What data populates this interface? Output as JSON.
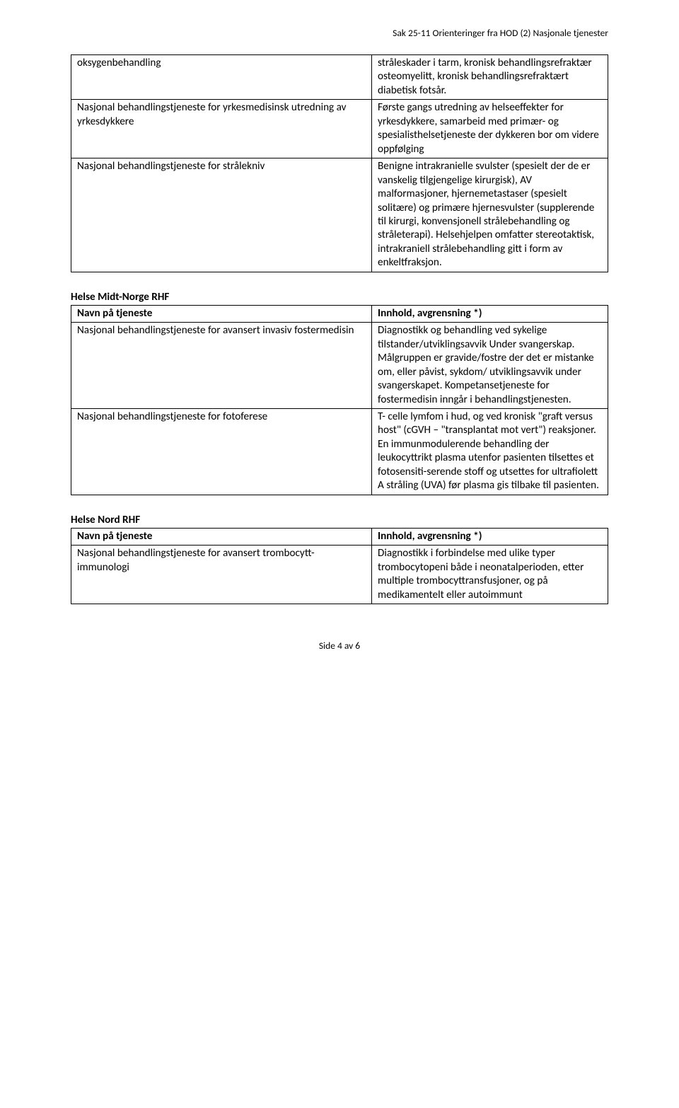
{
  "header": "Sak 25-11 Orienteringer fra HOD (2) Nasjonale tjenester",
  "table1": {
    "rows": [
      {
        "left": "oksygenbehandling",
        "right": "stråleskader i tarm, kronisk behandlingsrefraktær osteomyelitt, kronisk behandlingsrefraktært diabetisk fotsår."
      },
      {
        "left": "Nasjonal behandlingstjeneste for yrkesmedisinsk utredning av yrkesdykkere",
        "right": "Første gangs utredning av helseeffekter for yrkesdykkere, samarbeid med primær- og spesialisthelsetjeneste der dykkeren bor om videre oppfølging"
      },
      {
        "left": "Nasjonal behandlingstjeneste for strålekniv",
        "right": "Benigne intrakranielle svulster (spesielt der de er vanskelig tilgjengelige kirurgisk), AV malformasjoner, hjernemetastaser (spesielt solitære) og primære hjernesvulster (supplerende til kirurgi, konvensjonell strålebehandling og stråleterapi). Helsehjelpen omfatter stereotaktisk, intrakraniell strålebehandling gitt i form av enkeltfraksjon."
      }
    ]
  },
  "section2": {
    "heading": "Helse Midt-Norge RHF",
    "header_left": "Navn på tjeneste",
    "header_right": "Innhold, avgrensning *)",
    "rows": [
      {
        "left": "Nasjonal behandlingstjeneste for avansert invasiv fostermedisin",
        "right": "Diagnostikk og behandling ved sykelige tilstander/utviklingsavvik Under svangerskap. Målgruppen er gravide/fostre der det er mistanke om, eller påvist, sykdom/ utviklingsavvik under svangerskapet. Kompetansetjeneste for fostermedisin inngår i behandlingstjenesten."
      },
      {
        "left": "Nasjonal behandlingstjeneste for fotoferese",
        "right": "T- celle lymfom i hud, og ved kronisk \"graft versus host\" (cGVH – \"transplantat mot vert\") reaksjoner. En immunmodulerende behandling der leukocyttrikt plasma utenfor pasienten tilsettes et fotosensiti-serende stoff og utsettes for ultrafiolett A stråling (UVA) før plasma gis tilbake til pasienten."
      }
    ]
  },
  "section3": {
    "heading": "Helse Nord RHF",
    "header_left": "Navn på tjeneste",
    "header_right": "Innhold, avgrensning *)",
    "rows": [
      {
        "left": "Nasjonal behandlingstjeneste for avansert trombocytt-immunologi",
        "right": "Diagnostikk i forbindelse med ulike typer trombocytopeni både i neonatalperioden, etter multiple trombocyttransfusjoner, og på medikamentelt eller autoimmunt"
      }
    ]
  },
  "footer": "Side 4 av 6"
}
